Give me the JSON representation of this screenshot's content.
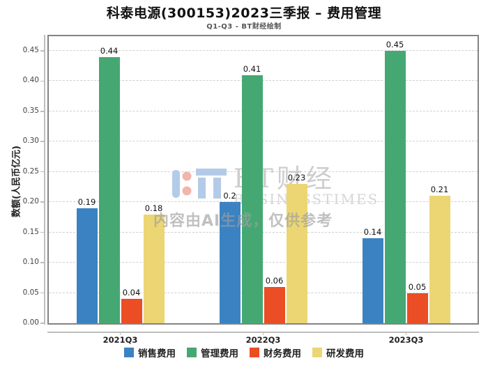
{
  "chart_data": {
    "type": "bar",
    "title": "科泰电源(300153)2023三季报 – 费用管理",
    "subtitle": "Q1-Q3 - BT财经绘制",
    "ylabel": "数额(人民币亿元)",
    "xlabel": "",
    "categories": [
      "2021Q3",
      "2022Q3",
      "2023Q3"
    ],
    "series": [
      {
        "name": "销售费用",
        "color": "#3A82C2",
        "values": [
          0.19,
          0.2,
          0.14
        ],
        "labels": [
          "0.19",
          "0.2",
          "0.14"
        ]
      },
      {
        "name": "管理费用",
        "color": "#45A873",
        "values": [
          0.44,
          0.41,
          0.45
        ],
        "labels": [
          "0.44",
          "0.41",
          "0.45"
        ]
      },
      {
        "name": "财务费用",
        "color": "#EB4D25",
        "values": [
          0.04,
          0.06,
          0.05
        ],
        "labels": [
          "0.04",
          "0.06",
          "0.05"
        ]
      },
      {
        "name": "研发费用",
        "color": "#ECD674",
        "values": [
          0.18,
          0.23,
          0.21
        ],
        "labels": [
          "0.18",
          "0.23",
          "0.21"
        ]
      }
    ],
    "yticks": [
      {
        "v": 0.0,
        "label": "0.00"
      },
      {
        "v": 0.05,
        "label": "0.05"
      },
      {
        "v": 0.1,
        "label": "0.10"
      },
      {
        "v": 0.15,
        "label": "0.15"
      },
      {
        "v": 0.2,
        "label": "0.20"
      },
      {
        "v": 0.25,
        "label": "0.25"
      },
      {
        "v": 0.3,
        "label": "0.30"
      },
      {
        "v": 0.35,
        "label": "0.35"
      },
      {
        "v": 0.4,
        "label": "0.40"
      },
      {
        "v": 0.45,
        "label": "0.45"
      }
    ],
    "ylim": [
      0,
      0.474
    ],
    "grid": "dashed-horizontal",
    "legend_position": "bottom"
  },
  "watermark": {
    "brand_cn": "BT财经",
    "brand_en": "BUSINESSTIMES",
    "ai_notice": "内容由AI生成，仅供参考",
    "logo_blue": "#B3CBE7",
    "logo_red": "#F2B5AC"
  }
}
